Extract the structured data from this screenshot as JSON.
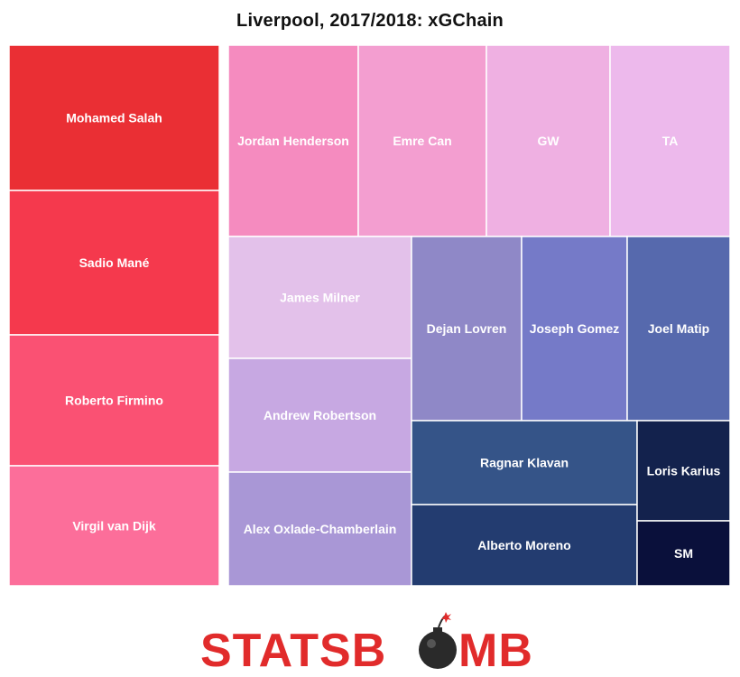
{
  "chart_data": {
    "type": "treemap",
    "title": "Liverpool, 2017/2018: xGChain",
    "cells": [
      {
        "label": "Mohamed Salah",
        "color": "#ea2f34"
      },
      {
        "label": "Sadio Mané",
        "color": "#f5394d"
      },
      {
        "label": "Roberto Firmino",
        "color": "#fa5173"
      },
      {
        "label": "Virgil van Dijk",
        "color": "#fc6e9a"
      },
      {
        "label": "Jordan Henderson",
        "color": "#f58bbf"
      },
      {
        "label": "Emre Can",
        "color": "#f39ed0"
      },
      {
        "label": "GW",
        "color": "#efb0e2"
      },
      {
        "label": "TA",
        "color": "#edb9ec"
      },
      {
        "label": "James Milner",
        "color": "#e3c1ea"
      },
      {
        "label": "Andrew Robertson",
        "color": "#c7a8e2"
      },
      {
        "label": "Alex Oxlade-Chamberlain",
        "color": "#a997d6"
      },
      {
        "label": "Dejan Lovren",
        "color": "#8f88c7"
      },
      {
        "label": "Joseph Gomez",
        "color": "#757ac8"
      },
      {
        "label": "Joel Matip",
        "color": "#5669ad"
      },
      {
        "label": "Ragnar Klavan",
        "color": "#355488"
      },
      {
        "label": "Alberto Moreno",
        "color": "#233c70"
      },
      {
        "label": "Loris Karius",
        "color": "#13224d"
      },
      {
        "label": "SM",
        "color": "#0a103b"
      }
    ]
  },
  "branding": {
    "logo_text_left": "STATSB",
    "logo_text_right": "MB",
    "logo_color": "#e12b2b",
    "bomb_color": "#2a2a2a"
  }
}
